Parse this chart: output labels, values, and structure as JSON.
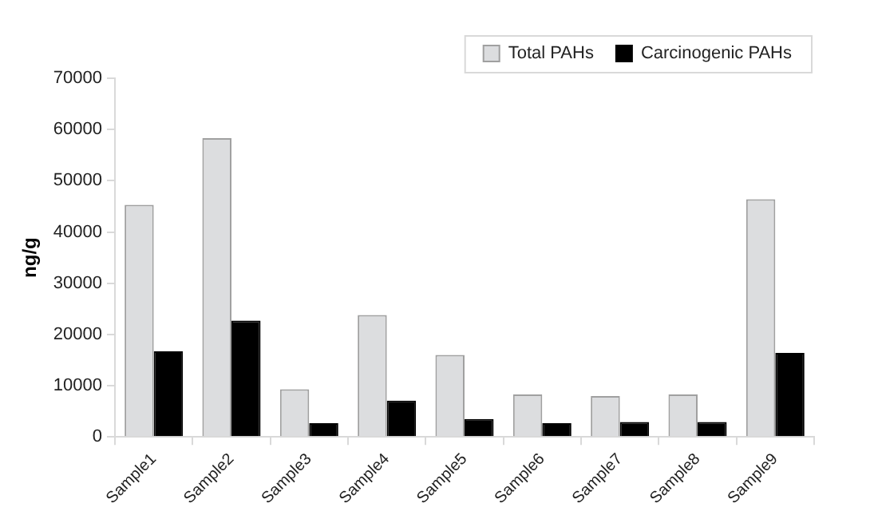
{
  "chart_data": {
    "type": "bar",
    "ylabel": "ng/g",
    "categories": [
      "Sample1",
      "Sample2",
      "Sample3",
      "Sample4",
      "Sample5",
      "Sample6",
      "Sample7",
      "Sample8",
      "Sample9"
    ],
    "series": [
      {
        "name": "Total PAHs",
        "color": "#dcdddf",
        "values": [
          45300,
          58300,
          9300,
          23800,
          16000,
          8300,
          8000,
          8300,
          46400
        ]
      },
      {
        "name": "Carcinogenic PAHs",
        "color": "#000000",
        "values": [
          16700,
          22700,
          2700,
          7100,
          3500,
          2700,
          2900,
          2900,
          16400
        ]
      }
    ],
    "ylim": [
      0,
      70000
    ],
    "yticks": [
      0,
      10000,
      20000,
      30000,
      40000,
      50000,
      60000,
      70000
    ],
    "grid": false,
    "legend": "top right"
  }
}
